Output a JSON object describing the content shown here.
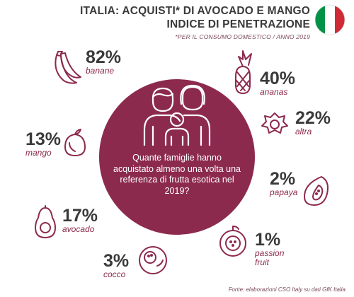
{
  "header": {
    "title_line1": "ITALIA: ACQUISTI* DI AVOCADO E MANGO",
    "title_line2": "INDICE DI PENETRAZIONE",
    "subtitle": "*PER IL CONSUMO DOMESTICO / ANNO 2019"
  },
  "center": {
    "question": "Quante famiglie hanno acquistato almeno una volta una referenza di frutta esotica nel 2019?"
  },
  "stats": {
    "banane": {
      "percent": "82%",
      "label": "banane"
    },
    "ananas": {
      "percent": "40%",
      "label": "ananas"
    },
    "altra": {
      "percent": "22%",
      "label": "altra"
    },
    "mango": {
      "percent": "13%",
      "label": "mango"
    },
    "papaya": {
      "percent": "2%",
      "label": "papaya"
    },
    "avocado": {
      "percent": "17%",
      "label": "avocado"
    },
    "cocco": {
      "percent": "3%",
      "label": "cocco"
    },
    "passion": {
      "percent": "1%",
      "label_line1": "passion",
      "label_line2": "fruit"
    }
  },
  "footer": {
    "source": "Fonte: elaborazioni CSO Italy su dati GfK Italia"
  },
  "colors": {
    "accent": "#8c2a4e",
    "text": "#3a3a3a",
    "flag_green": "#009246",
    "flag_white": "#ffffff",
    "flag_red": "#ce2b37"
  },
  "icons": [
    "italy-flag-icon",
    "family-icon",
    "banana-icon",
    "pineapple-icon",
    "pitaya-icon",
    "mango-icon",
    "papaya-icon",
    "avocado-icon",
    "coconut-icon",
    "passion-fruit-icon"
  ]
}
